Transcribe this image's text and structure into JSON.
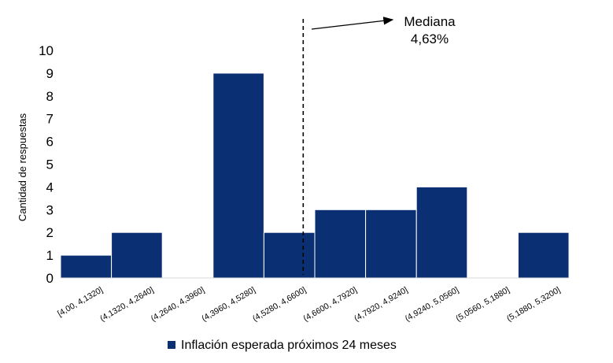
{
  "chart_data": {
    "type": "bar",
    "title": "",
    "xlabel": "",
    "ylabel": "Cantidad de respuestas",
    "ylim": [
      0,
      10
    ],
    "yticks": [
      0,
      1,
      2,
      3,
      4,
      5,
      6,
      7,
      8,
      9,
      10
    ],
    "categories": [
      "[4,00, 4,1320]",
      "(4,1320, 4,2640]",
      "(4,2640, 4,3960]",
      "(4,3960, 4,5280]",
      "(4,5280, 4,6600]",
      "(4,6600, 4,7920]",
      "(4,7920, 4,9240]",
      "(4,9240, 5,0560]",
      "(5,0560, 5,1880]",
      "(5,1880, 5,3200]"
    ],
    "series": [
      {
        "name": "Inflación esperada próximos 24 meses",
        "color": "#0b2f73",
        "values": [
          1,
          2,
          0,
          9,
          2,
          3,
          3,
          4,
          0,
          2
        ]
      }
    ],
    "median": {
      "value": 4.63,
      "label_line1": "Mediana",
      "label_line2": "4,63%"
    },
    "legend_position": "bottom",
    "grid": false
  }
}
